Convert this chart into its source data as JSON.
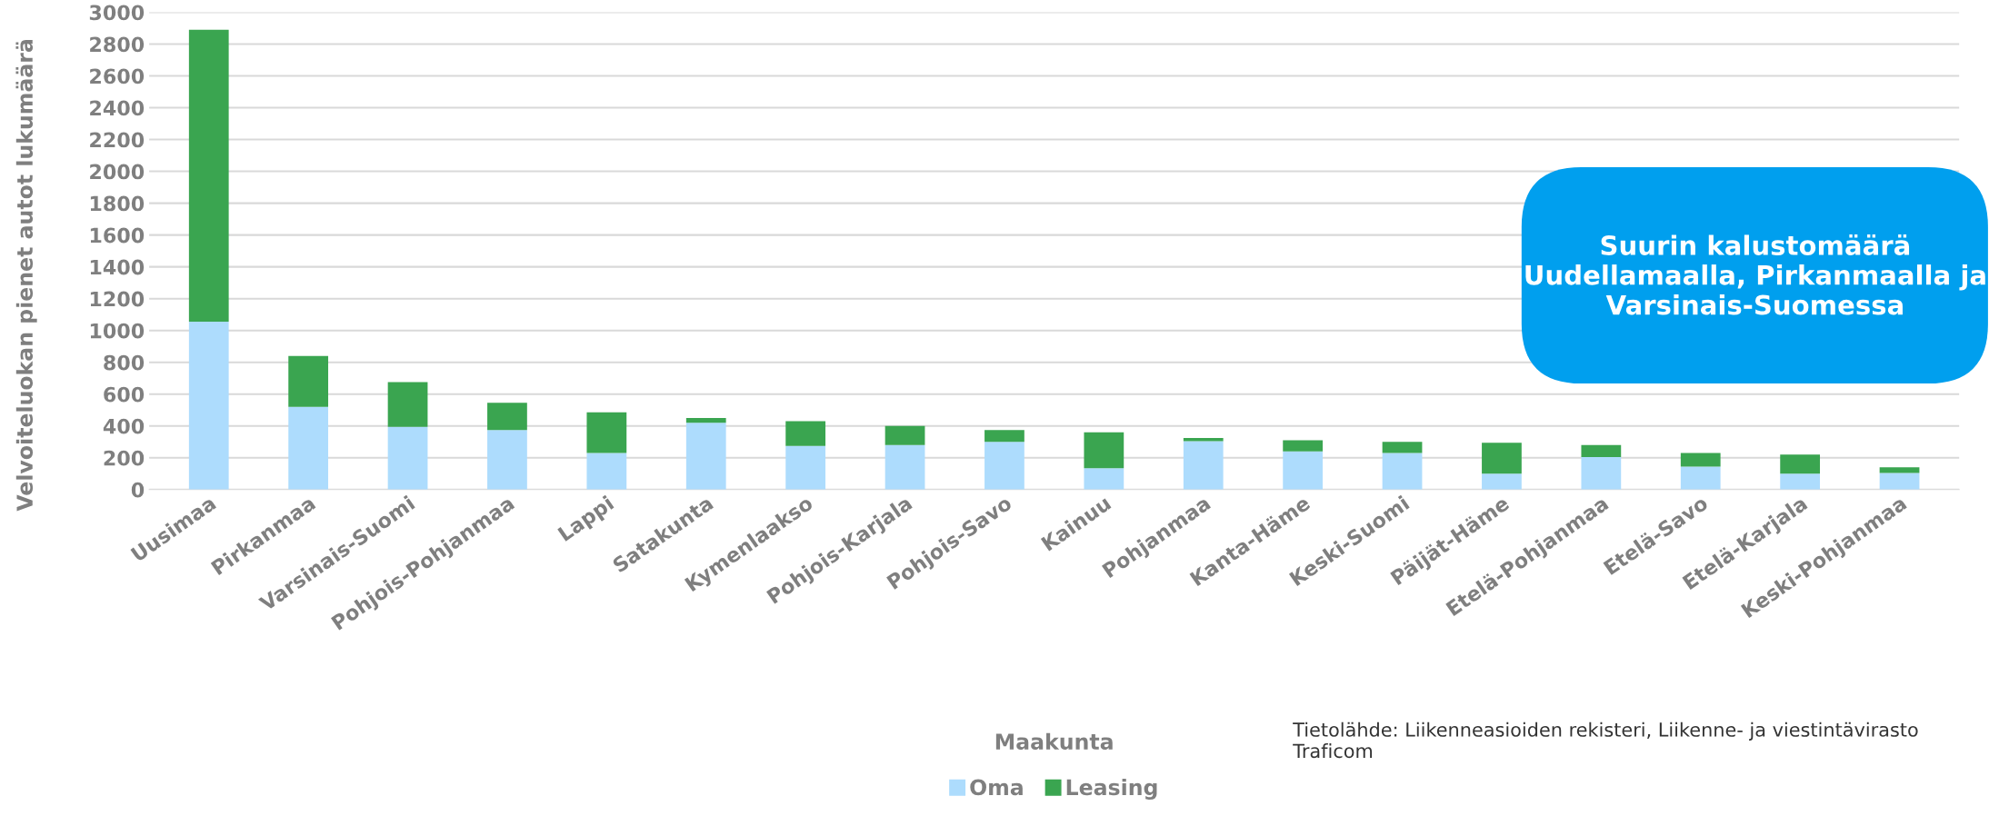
{
  "chart_data": {
    "type": "bar",
    "stacked": true,
    "xlabel": "Maakunta",
    "ylabel": "Velvoiteluokan pienet autot lukumäärä",
    "categories": [
      "Uusimaa",
      "Pirkanmaa",
      "Varsinais-Suomi",
      "Pohjois-Pohjanmaa",
      "Lappi",
      "Satakunta",
      "Kymenlaakso",
      "Pohjois-Karjala",
      "Pohjois-Savo",
      "Kainuu",
      "Pohjanmaa",
      "Kanta-Häme",
      "Keski-Suomi",
      "Päijät-Häme",
      "Etelä-Pohjanmaa",
      "Etelä-Savo",
      "Etelä-Karjala",
      "Keski-Pohjanmaa"
    ],
    "series": [
      {
        "name": "Oma",
        "color": "#addcfd",
        "values": [
          1055,
          520,
          395,
          375,
          230,
          420,
          275,
          280,
          300,
          135,
          305,
          240,
          230,
          100,
          205,
          145,
          100,
          105
        ]
      },
      {
        "name": "Leasing",
        "color": "#3aa550",
        "values": [
          1835,
          320,
          280,
          170,
          255,
          30,
          155,
          120,
          75,
          225,
          20,
          70,
          70,
          195,
          75,
          85,
          120,
          35
        ]
      }
    ],
    "ylim": [
      0,
      3000
    ],
    "yticks": [
      0,
      200,
      400,
      600,
      800,
      1000,
      1200,
      1400,
      1600,
      1800,
      2000,
      2200,
      2400,
      2600,
      2800,
      3000
    ],
    "grid": "y",
    "legend": "bottom",
    "annotations": [
      "Suurin kalustomäärä Uudellamaalla, Pirkanmaalla ja Varsinais-Suomessa",
      "Tietolähde: Liikenneasioiden rekisteri, Liikenne- ja viestintävirasto Traficom"
    ]
  }
}
